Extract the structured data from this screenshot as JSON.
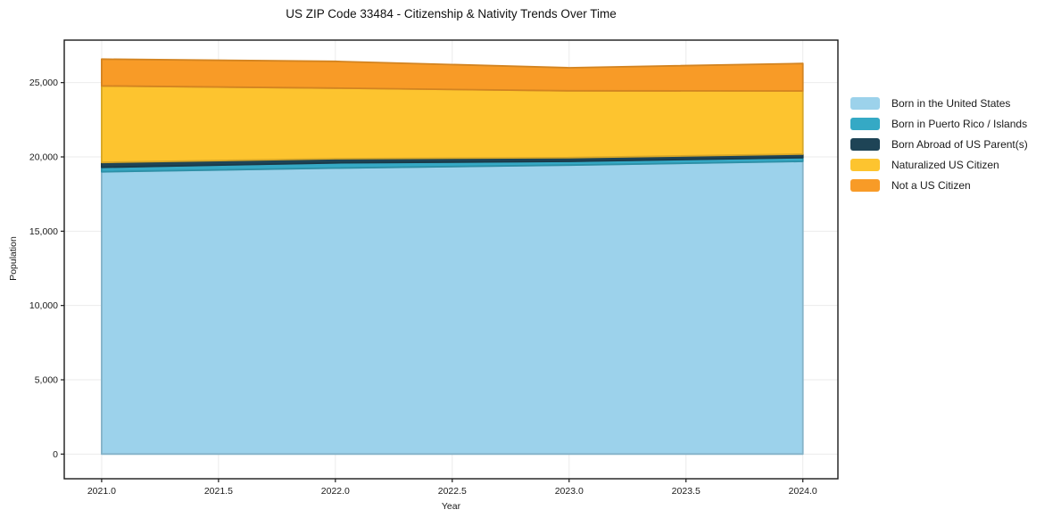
{
  "chart_data": {
    "type": "area",
    "stacked": true,
    "title": "US ZIP Code 33484 - Citizenship & Nativity Trends Over Time",
    "xlabel": "Year",
    "ylabel": "Population",
    "x": [
      2021,
      2022,
      2023,
      2024
    ],
    "series": [
      {
        "name": "Born in the United States",
        "color": "#9CD2EB",
        "values": [
          19000,
          19250,
          19450,
          19700
        ]
      },
      {
        "name": "Born in Puerto Rico / Islands",
        "color": "#35A9C5",
        "values": [
          300,
          350,
          250,
          250
        ]
      },
      {
        "name": "Born Abroad of US Parent(s)",
        "color": "#1E4456",
        "values": [
          330,
          280,
          250,
          240
        ]
      },
      {
        "name": "Naturalized US Citizen",
        "color": "#FDC42F",
        "values": [
          5150,
          4750,
          4500,
          4250
        ]
      },
      {
        "name": "Not a US Citizen",
        "color": "#F89B27",
        "values": [
          1800,
          1800,
          1550,
          1850
        ]
      }
    ],
    "xticks": [
      2021.0,
      2021.5,
      2022.0,
      2022.5,
      2023.0,
      2023.5,
      2024.0
    ],
    "yticks": [
      0,
      5000,
      10000,
      15000,
      20000,
      25000
    ],
    "xlim": [
      2020.84,
      2024.15
    ],
    "ylim": [
      -1660,
      27860
    ],
    "grid": true,
    "grid_color": "#ebebeb",
    "spine_color": "#1a1a1a",
    "legend_position": "outside-right",
    "legend_frame": false
  }
}
